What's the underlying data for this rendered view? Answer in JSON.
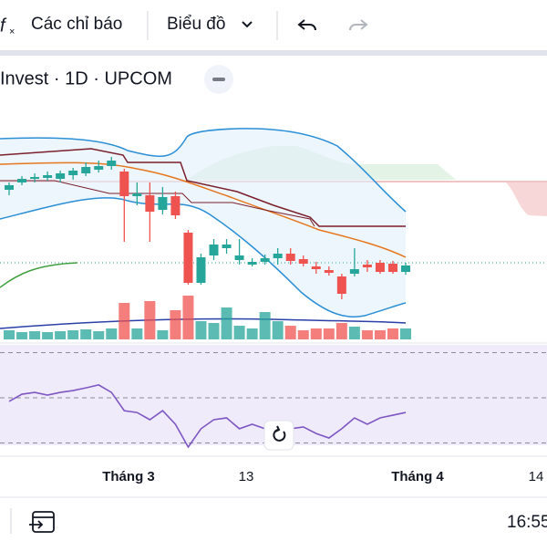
{
  "toolbar": {
    "indicators": "Các chỉ báo",
    "chart_type": "Biểu đồ"
  },
  "symbol": "Invest · 1D · UPCOM",
  "chart_data": {
    "type": "candlestick",
    "open": [
      192,
      200,
      204,
      205,
      204,
      208,
      210,
      214,
      218,
      212,
      185,
      186,
      170,
      185,
      145,
      90,
      120,
      128,
      115,
      110,
      113,
      117,
      122,
      116,
      108,
      104,
      97,
      100,
      110,
      112,
      111,
      102
    ],
    "high": [
      200,
      207,
      210,
      212,
      213,
      216,
      222,
      224,
      228,
      215,
      200,
      200,
      195,
      190,
      148,
      122,
      138,
      138,
      138,
      117,
      121,
      128,
      128,
      120,
      113,
      108,
      100,
      128,
      115,
      115,
      114,
      112
    ],
    "low": [
      186,
      197,
      200,
      202,
      200,
      203,
      207,
      211,
      214,
      135,
      175,
      135,
      165,
      160,
      88,
      88,
      115,
      122,
      110,
      108,
      110,
      110,
      110,
      108,
      100,
      98,
      72,
      97,
      102,
      100,
      100,
      99
    ],
    "close": [
      197,
      204,
      206,
      208,
      210,
      213,
      217,
      218,
      224,
      185,
      188,
      168,
      184,
      164,
      90,
      118,
      132,
      132,
      120,
      113,
      117,
      122,
      114,
      111,
      105,
      101,
      78,
      105,
      107,
      102,
      102,
      109
    ],
    "volume": [
      10,
      8,
      9,
      8,
      9,
      10,
      11,
      9,
      12,
      40,
      12,
      42,
      10,
      32,
      48,
      20,
      18,
      35,
      15,
      12,
      30,
      20,
      15,
      10,
      12,
      12,
      18,
      14,
      10,
      10,
      12,
      12
    ],
    "rsi": [
      48.4,
      51.6,
      52.4,
      51.2,
      52.4,
      53.2,
      54.4,
      55.7,
      52.4,
      44.3,
      43.5,
      40.3,
      44.3,
      38.3,
      28.2,
      36.3,
      40.3,
      41.1,
      36.3,
      38.3,
      36.3,
      34.2,
      36.3,
      37.1,
      34.2,
      32.2,
      36.3,
      41.1,
      38.3,
      41.1,
      42.3,
      43.5
    ],
    "rsi_levels": [
      30,
      50,
      70
    ],
    "up_color": "#26a69a",
    "down_color": "#ef5350",
    "x_labels": [
      "Tháng 3",
      "13",
      "Tháng 4",
      "14"
    ]
  },
  "status": {
    "time": "16:55"
  }
}
